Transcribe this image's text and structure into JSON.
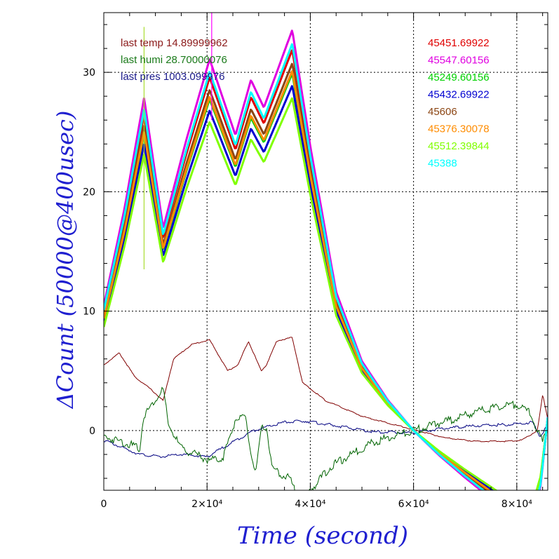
{
  "chart_data": {
    "type": "line",
    "xlabel": "Time (second)",
    "ylabel": "ΔCount (50000@400usec)",
    "xlim": [
      0,
      86000
    ],
    "ylim": [
      -5,
      35
    ],
    "x_tick_labels": [
      "0",
      "2×10⁴",
      "4×10⁴",
      "6×10⁴",
      "8×10⁴"
    ],
    "x_ticks": [
      0,
      20000,
      40000,
      60000,
      80000
    ],
    "y_ticks": [
      0,
      10,
      20,
      30
    ],
    "grid": true,
    "annotations": [
      {
        "text": "last temp 14.89999962",
        "color": "#8b1a1a"
      },
      {
        "text": "last humi 28.70000076",
        "color": "#1a7a1a"
      },
      {
        "text": "last pres 1003.099976",
        "color": "#1a1a8b"
      }
    ],
    "series": [
      {
        "name": "45451.69922",
        "color": "#e00000",
        "offset": 2.9
      },
      {
        "name": "45547.60156",
        "color": "#e000e0",
        "offset": 4.5
      },
      {
        "name": "45249.60156",
        "color": "#00d000",
        "offset": 1.0
      },
      {
        "name": "45432.69922",
        "color": "#0000d0",
        "offset": 0.0
      },
      {
        "name": "45606",
        "color": "#8b4513",
        "offset": 1.8
      },
      {
        "name": "45376.30078",
        "color": "#ff8c00",
        "offset": 1.2
      },
      {
        "name": "45512.39844",
        "color": "#80ff00",
        "offset": -1.0
      },
      {
        "name": "45388",
        "color": "#00ffff",
        "offset": 3.4
      }
    ],
    "base_curve": {
      "x": [
        0,
        4000,
        7800,
        11500,
        16000,
        20500,
        25500,
        28500,
        31000,
        36500,
        40000,
        45000,
        50000,
        55000,
        60000,
        65000,
        70000,
        76000,
        80000,
        83000,
        84600,
        86000
      ],
      "y": [
        9.0,
        16.0,
        24.0,
        14.6,
        21.0,
        26.8,
        21.3,
        25.3,
        23.3,
        28.9,
        20.5,
        10.0,
        5.0,
        2.2,
        0.0,
        -1.8,
        -3.4,
        -5.2,
        -6.5,
        -6.5,
        -4.0,
        1.0
      ]
    },
    "temp_curve": {
      "name": "temp",
      "color": "#800000",
      "x": [
        0,
        3000,
        6000,
        9000,
        11500,
        13500,
        17000,
        20500,
        24000,
        26000,
        28000,
        30500,
        31500,
        33500,
        36500,
        38500,
        43000,
        50000,
        58000,
        66000,
        72000,
        78000,
        81000,
        84000,
        85000,
        86000
      ],
      "y": [
        5.5,
        6.5,
        4.5,
        3.5,
        2.5,
        6.0,
        7.2,
        7.6,
        5.0,
        5.5,
        7.5,
        5.0,
        5.5,
        7.5,
        7.8,
        4.0,
        2.5,
        1.2,
        0.3,
        -0.6,
        -0.9,
        -0.9,
        -0.8,
        0.0,
        3.0,
        1.0
      ]
    },
    "humi_curve": {
      "name": "humi",
      "color": "#006400",
      "x": [
        0,
        4000,
        7000,
        7600,
        8200,
        11500,
        12500,
        15000,
        20500,
        23000,
        24500,
        25500,
        27500,
        28500,
        29500,
        30500,
        31500,
        32500,
        33500,
        36000,
        37000,
        38000,
        44000,
        52000,
        60000,
        68000,
        74000,
        80000,
        82500,
        84000,
        85000,
        86000
      ],
      "y": [
        -0.5,
        -1.0,
        -1.5,
        1.0,
        1.5,
        3.5,
        0.5,
        -1.5,
        -2.5,
        -2.3,
        -0.5,
        1.0,
        1.0,
        -2.0,
        -3.5,
        0.0,
        0.5,
        -3.0,
        -3.5,
        -4.0,
        -5.0,
        -6.0,
        -3.0,
        -1.0,
        0.0,
        1.0,
        1.8,
        2.2,
        1.5,
        0.0,
        -1.0,
        0.5
      ]
    },
    "pres_curve": {
      "name": "pres",
      "color": "#000080",
      "x": [
        0,
        4000,
        7000,
        11000,
        15000,
        20000,
        24000,
        29000,
        35000,
        39000,
        45000,
        52000,
        60000,
        66000,
        72000,
        78000,
        81000,
        83000,
        84500,
        86000
      ],
      "y": [
        -0.8,
        -1.5,
        -2.0,
        -2.2,
        -2.0,
        -2.2,
        -1.2,
        0.0,
        0.7,
        0.8,
        0.4,
        -0.1,
        -0.2,
        0.2,
        0.4,
        0.5,
        0.6,
        0.7,
        -0.5,
        0.5
      ]
    },
    "spike_lines": [
      {
        "x": 7800,
        "y_from": 13.5,
        "y_to": 33.8,
        "color": "#aadd33"
      },
      {
        "x": 20900,
        "y_from": 26.0,
        "y_to": 35.0,
        "color": "#ff00ff"
      }
    ]
  }
}
